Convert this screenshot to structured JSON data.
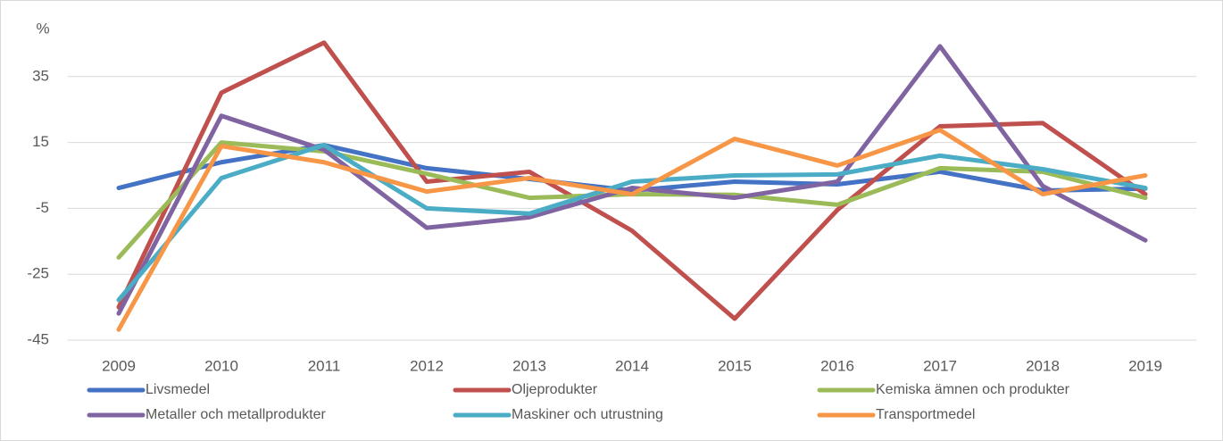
{
  "chart_data": {
    "type": "line",
    "y_label": "%",
    "categories": [
      "2009",
      "2010",
      "2011",
      "2012",
      "2013",
      "2014",
      "2015",
      "2016",
      "2017",
      "2018",
      "2019"
    ],
    "series": [
      {
        "name": "Livsmedel",
        "color": "#4472c4",
        "values": [
          1.2,
          9,
          14.2,
          7.2,
          3.9,
          0.4,
          3.1,
          2.3,
          6.1,
          0.4,
          1
        ]
      },
      {
        "name": "Oljeprodukter",
        "color": "#c0504d",
        "values": [
          -35,
          30.1,
          45.3,
          3.1,
          6.1,
          -11.8,
          -38.5,
          -5.5,
          19.9,
          20.9,
          -0.7
        ]
      },
      {
        "name": "Kemiska ämnen och produkter",
        "color": "#9bbb59",
        "values": [
          -19.9,
          15,
          12.3,
          5.5,
          -1.8,
          -0.7,
          -0.9,
          -3.9,
          7.2,
          6.1,
          -1.8
        ]
      },
      {
        "name": "Metaller och metallprodukter",
        "color": "#8064a2",
        "values": [
          -36.9,
          23.1,
          12.8,
          -10.9,
          -7.7,
          1.2,
          -1.8,
          3.1,
          44.2,
          1.8,
          -14.7
        ]
      },
      {
        "name": "Maskiner och utrustning",
        "color": "#4bacc6",
        "values": [
          -32.8,
          4.2,
          14.2,
          -5,
          -6.6,
          3.1,
          5,
          5.3,
          11,
          6.9,
          1.2
        ]
      },
      {
        "name": "Transportmedel",
        "color": "#f79646",
        "values": [
          -41.8,
          13.9,
          9,
          0.1,
          4.2,
          -0.7,
          16.1,
          8,
          18.8,
          -0.7,
          5
        ]
      }
    ],
    "ylim": [
      -45,
      55
    ],
    "yticks": [
      -45,
      -25,
      -5,
      15,
      35
    ],
    "grid": true,
    "legend": "bottom"
  }
}
